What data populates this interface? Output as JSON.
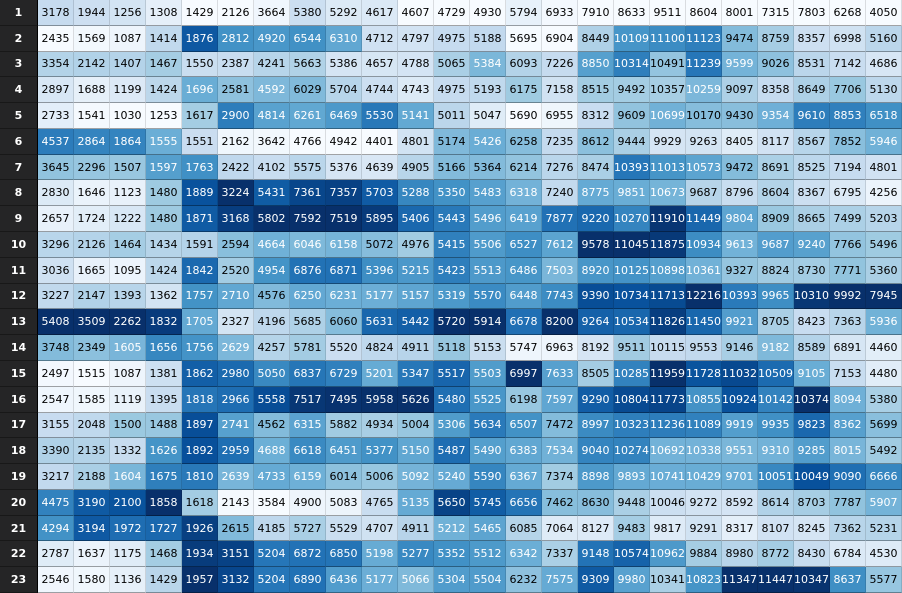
{
  "table": {
    "row_labels": [
      "1",
      "2",
      "3",
      "4",
      "5",
      "6",
      "7",
      "8",
      "9",
      "10",
      "11",
      "12",
      "13",
      "14",
      "15",
      "16",
      "17",
      "18",
      "19",
      "20",
      "21",
      "22",
      "23"
    ],
    "rows": [
      [
        "3178",
        "1944",
        "1256",
        "1308",
        "1429",
        "2126",
        "3664",
        "5380",
        "5292",
        "4617",
        "4607",
        "4729",
        "4930",
        "5794",
        "6933",
        "7910",
        "8633",
        "9511",
        "8604",
        "8001",
        "7315",
        "7803",
        "6268",
        "4050"
      ],
      [
        "2435",
        "1569",
        "1087",
        "1414",
        "1876",
        "2812",
        "4920",
        "6544",
        "6310",
        "4712",
        "4797",
        "4975",
        "5188",
        "5695",
        "6904",
        "8449",
        "10109",
        "11100",
        "11123",
        "9474",
        "8759",
        "8357",
        "6998",
        "5160"
      ],
      [
        "3354",
        "2142",
        "1407",
        "1467",
        "1550",
        "2387",
        "4241",
        "5663",
        "5386",
        "4657",
        "4788",
        "5065",
        "5384",
        "6093",
        "7226",
        "8850",
        "10314",
        "10491",
        "11239",
        "9599",
        "9026",
        "8531",
        "7142",
        "4686"
      ],
      [
        "2897",
        "1688",
        "1199",
        "1424",
        "1696",
        "2581",
        "4592",
        "6029",
        "5704",
        "4744",
        "4743",
        "4975",
        "5193",
        "6175",
        "7158",
        "8515",
        "9492",
        "10357",
        "10259",
        "9097",
        "8358",
        "8649",
        "7706",
        "5130"
      ],
      [
        "2733",
        "1541",
        "1030",
        "1253",
        "1617",
        "2900",
        "4814",
        "6261",
        "6469",
        "5530",
        "5141",
        "5011",
        "5047",
        "5690",
        "6955",
        "8312",
        "9609",
        "10699",
        "10170",
        "9430",
        "9354",
        "9610",
        "8853",
        "6518"
      ],
      [
        "4537",
        "2864",
        "1864",
        "1555",
        "1551",
        "2162",
        "3642",
        "4766",
        "4942",
        "4401",
        "4801",
        "5174",
        "5426",
        "6258",
        "7235",
        "8612",
        "9444",
        "9929",
        "9263",
        "8405",
        "8117",
        "8567",
        "7852",
        "5946"
      ],
      [
        "3645",
        "2296",
        "1507",
        "1597",
        "1763",
        "2422",
        "4102",
        "5575",
        "5376",
        "4639",
        "4905",
        "5166",
        "5364",
        "6214",
        "7276",
        "8474",
        "10393",
        "11013",
        "10573",
        "9472",
        "8691",
        "8525",
        "7194",
        "4801"
      ],
      [
        "2830",
        "1646",
        "1123",
        "1480",
        "1889",
        "3224",
        "5431",
        "7361",
        "7357",
        "5703",
        "5288",
        "5350",
        "5483",
        "6318",
        "7240",
        "8775",
        "9851",
        "10673",
        "9687",
        "8796",
        "8604",
        "8367",
        "6795",
        "4256"
      ],
      [
        "2657",
        "1724",
        "1222",
        "1480",
        "1871",
        "3168",
        "5802",
        "7592",
        "7519",
        "5895",
        "5406",
        "5443",
        "5496",
        "6419",
        "7877",
        "9220",
        "10270",
        "11910",
        "11449",
        "9804",
        "8909",
        "8665",
        "7499",
        "5203"
      ],
      [
        "3296",
        "2126",
        "1464",
        "1434",
        "1591",
        "2594",
        "4664",
        "6046",
        "6158",
        "5072",
        "4976",
        "5415",
        "5506",
        "6527",
        "7612",
        "9578",
        "11045",
        "11875",
        "10934",
        "9613",
        "9687",
        "9240",
        "7766",
        "5496"
      ],
      [
        "3036",
        "1665",
        "1095",
        "1424",
        "1842",
        "2520",
        "4954",
        "6876",
        "6871",
        "5396",
        "5215",
        "5423",
        "5513",
        "6486",
        "7503",
        "8920",
        "10125",
        "10898",
        "10361",
        "9327",
        "8824",
        "8730",
        "7771",
        "5360"
      ],
      [
        "3227",
        "2147",
        "1393",
        "1362",
        "1757",
        "2710",
        "4576",
        "6250",
        "6231",
        "5177",
        "5157",
        "5319",
        "5570",
        "6448",
        "7743",
        "9390",
        "10734",
        "11713",
        "12216",
        "10393",
        "9965",
        "10310",
        "9992",
        "7945"
      ],
      [
        "5408",
        "3509",
        "2262",
        "1832",
        "1705",
        "2327",
        "4196",
        "5685",
        "6060",
        "5631",
        "5442",
        "5720",
        "5914",
        "6678",
        "8200",
        "9264",
        "10534",
        "11826",
        "11450",
        "9921",
        "8705",
        "8423",
        "7363",
        "5936"
      ],
      [
        "3748",
        "2349",
        "1605",
        "1656",
        "1756",
        "2629",
        "4257",
        "5781",
        "5520",
        "4824",
        "4911",
        "5118",
        "5153",
        "5747",
        "6963",
        "8192",
        "9511",
        "10115",
        "9553",
        "9146",
        "9182",
        "8589",
        "6891",
        "4460"
      ],
      [
        "2497",
        "1515",
        "1087",
        "1381",
        "1862",
        "2980",
        "5050",
        "6837",
        "6729",
        "5201",
        "5347",
        "5517",
        "5503",
        "6997",
        "7633",
        "8505",
        "10285",
        "11959",
        "11728",
        "11032",
        "10509",
        "9105",
        "7153",
        "4480"
      ],
      [
        "2547",
        "1585",
        "1119",
        "1395",
        "1818",
        "2966",
        "5558",
        "7517",
        "7495",
        "5958",
        "5626",
        "5480",
        "5525",
        "6198",
        "7597",
        "9290",
        "10804",
        "11773",
        "10855",
        "10924",
        "10142",
        "10374",
        "8094",
        "5380"
      ],
      [
        "3155",
        "2048",
        "1500",
        "1488",
        "1897",
        "2741",
        "4562",
        "6315",
        "5882",
        "4934",
        "5004",
        "5306",
        "5634",
        "6507",
        "7472",
        "8997",
        "10323",
        "11236",
        "11089",
        "9919",
        "9935",
        "9823",
        "8362",
        "5699"
      ],
      [
        "3390",
        "2135",
        "1332",
        "1626",
        "1892",
        "2959",
        "4688",
        "6618",
        "6451",
        "5377",
        "5150",
        "5487",
        "5490",
        "6383",
        "7534",
        "9040",
        "10274",
        "10692",
        "10338",
        "9551",
        "9310",
        "9285",
        "8015",
        "5492"
      ],
      [
        "3217",
        "2188",
        "1604",
        "1675",
        "1810",
        "2639",
        "4733",
        "6159",
        "6014",
        "5006",
        "5092",
        "5240",
        "5590",
        "6367",
        "7374",
        "8898",
        "9893",
        "10741",
        "10429",
        "9701",
        "10051",
        "10049",
        "9090",
        "6666"
      ],
      [
        "4475",
        "3190",
        "2100",
        "1858",
        "1618",
        "2143",
        "3584",
        "4900",
        "5083",
        "4765",
        "5135",
        "5650",
        "5745",
        "6656",
        "7462",
        "8630",
        "9448",
        "10046",
        "9272",
        "8592",
        "8614",
        "8703",
        "7787",
        "5907"
      ],
      [
        "4294",
        "3194",
        "1972",
        "1727",
        "1926",
        "2615",
        "4185",
        "5727",
        "5529",
        "4707",
        "4911",
        "5212",
        "5465",
        "6085",
        "7064",
        "8127",
        "9483",
        "9817",
        "9291",
        "8317",
        "8107",
        "8245",
        "7362",
        "5231"
      ],
      [
        "2787",
        "1637",
        "1175",
        "1468",
        "1934",
        "3151",
        "5204",
        "6872",
        "6850",
        "5198",
        "5277",
        "5352",
        "5512",
        "6342",
        "7337",
        "9148",
        "10574",
        "10962",
        "9884",
        "8980",
        "8772",
        "8430",
        "6784",
        "4530"
      ],
      [
        "2546",
        "1580",
        "1136",
        "1429",
        "1957",
        "3132",
        "5204",
        "6890",
        "6436",
        "5177",
        "5066",
        "5304",
        "5504",
        "6232",
        "7575",
        "9309",
        "9980",
        "10341",
        "10823",
        "11347",
        "11447",
        "10347",
        "8637",
        "5577"
      ]
    ]
  }
}
